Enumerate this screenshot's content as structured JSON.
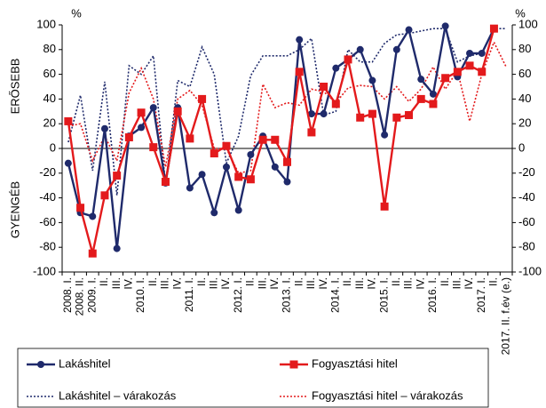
{
  "chart_data": {
    "type": "line",
    "y_label_left_unit": "%",
    "y_label_right_unit": "%",
    "upper_label": "ERŐSEBB",
    "lower_label": "GYENGÉB",
    "categories": [
      "2008. I.",
      "2008. II.",
      "2009. I.",
      "II.",
      "III.",
      "IV.",
      "2010. I.",
      "II.",
      "III.",
      "IV.",
      "2011. I.",
      "II.",
      "III.",
      "IV.",
      "2012. I.",
      "II.",
      "III.",
      "IV.",
      "2013. I.",
      "II.",
      "III.",
      "IV.",
      "2014. I.",
      "II.",
      "III.",
      "IV.",
      "2015. I.",
      "II.",
      "III.",
      "IV.",
      "2016. I.",
      "II.",
      "III.",
      "IV.",
      "2017. I.",
      "II.",
      "2017. II. f.év (e.)"
    ],
    "series": [
      {
        "name": "Lakáshitel",
        "color": "#1f2a6b",
        "style": "solid",
        "marker": "circle",
        "values": [
          -12,
          -52,
          -55,
          16,
          -81,
          10,
          17,
          33,
          -28,
          33,
          -32,
          -21,
          -52,
          -15,
          -50,
          -5,
          10,
          -15,
          -27,
          88,
          28,
          28,
          65,
          72,
          80,
          55,
          11,
          80,
          96,
          56,
          44,
          99,
          58,
          77,
          77,
          97,
          null
        ]
      },
      {
        "name": "Fogyasztási hitel",
        "color": "#e31a1c",
        "style": "solid",
        "marker": "square",
        "values": [
          22,
          -48,
          -85,
          -38,
          -22,
          9,
          29,
          1,
          -27,
          30,
          8,
          40,
          -4,
          2,
          -23,
          -25,
          7,
          7,
          -11,
          62,
          13,
          50,
          36,
          72,
          25,
          28,
          -47,
          25,
          27,
          40,
          36,
          57,
          62,
          67,
          62,
          97,
          null
        ]
      },
      {
        "name": "Lakáshitel – várakozás",
        "color": "#1f2a6b",
        "style": "dotted",
        "marker": "none",
        "values": [
          5,
          43,
          -18,
          54,
          -38,
          67,
          60,
          75,
          -30,
          55,
          50,
          82,
          60,
          -12,
          10,
          59,
          75,
          75,
          75,
          80,
          89,
          27,
          30,
          80,
          70,
          70,
          85,
          92,
          93,
          95,
          97,
          97,
          70,
          75,
          77,
          97,
          97
        ]
      },
      {
        "name": "Fogyasztási hitel – várakozás",
        "color": "#e31a1c",
        "style": "dotted",
        "marker": "none",
        "values": [
          18,
          20,
          -10,
          10,
          -10,
          45,
          65,
          40,
          -15,
          40,
          47,
          35,
          0,
          0,
          -20,
          -18,
          52,
          33,
          37,
          35,
          48,
          46,
          37,
          49,
          51,
          50,
          40,
          50,
          38,
          48,
          66,
          48,
          63,
          22,
          60,
          86,
          66
        ]
      }
    ],
    "ylim": [
      -100,
      100
    ],
    "yticks": [
      -100,
      -80,
      -60,
      -40,
      -20,
      0,
      20,
      40,
      60,
      80,
      100
    ],
    "y2lim": [
      -100,
      100
    ],
    "y2ticks": [
      -100,
      -80,
      -60,
      -40,
      -20,
      0,
      20,
      40,
      60,
      80,
      100
    ],
    "grid": false
  }
}
